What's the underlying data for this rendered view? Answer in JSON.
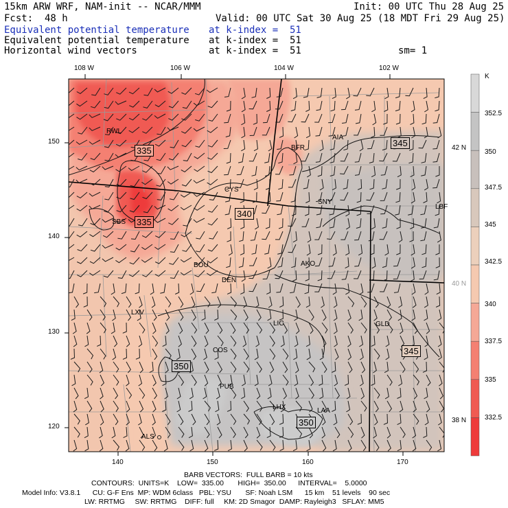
{
  "header": {
    "model": "15km ARW WRF, NAM-init -- NCAR/MMM",
    "init": "Init: 00 UTC Thu 28 Aug 25",
    "fcst_label": "Fcst:",
    "fcst_value": "48 h",
    "valid": "Valid: 00 UTC Sat 30 Aug 25 (18 MDT Fri 29 Aug 25)",
    "line1_left": "Equivalent potential temperature",
    "line1_right": "at k-index =  51",
    "line2_left": "Equivalent potential temperature",
    "line2_right": "at k-index =  51",
    "line3_left": "Horizontal wind vectors",
    "line3_right": "at k-index =  51",
    "smoothing": "sm= 1"
  },
  "top_axis": [
    "108 W",
    "106 W",
    "104 W",
    "102 W"
  ],
  "left_axis": [
    "150",
    "140",
    "130",
    "120"
  ],
  "bottom_axis": [
    "140",
    "150",
    "160",
    "170"
  ],
  "right_lat": [
    "42 N",
    "40 N",
    "38 N"
  ],
  "stations": [
    "RWL",
    "BFR",
    "AIA",
    "CYS",
    "SNY",
    "LBF",
    "SBS",
    "BOU",
    "AKO",
    "DEN",
    "LIC",
    "GLD",
    "LXV",
    "COS",
    "PUB",
    "LHX",
    "LAA",
    "ALS"
  ],
  "contour_labels": [
    "335",
    "335",
    "340",
    "345",
    "345",
    "350",
    "350"
  ],
  "colorbar": {
    "unit": "K",
    "ticks": [
      "352.5",
      "350",
      "347.5",
      "345",
      "342.5",
      "340",
      "337.5",
      "335",
      "332.5"
    ],
    "colors": [
      "#d8d8d8",
      "#c4c4c4",
      "#c8c0bc",
      "#d8c8bc",
      "#ecd0bc",
      "#f5c9b0",
      "#f5a896",
      "#f48072",
      "#f05a52",
      "#ee3b3b"
    ]
  },
  "footer": {
    "barbs": "BARB VECTORS:  FULL BARB = 10 kts",
    "contours": "CONTOURS:  UNITS=K    LOW=  335.00       HIGH=  350.00      INTERVAL=    5.0000",
    "model_info": "Model Info: V3.8.1      CU: G-F Ens  MP: WDM 6class   PBL: YSU       SF: Noah LSM      15 km    51 levels    90 sec",
    "physics": "LW: RRTMG     SW: RRTMG    DIFF: full     KM: 2D Smagor  DAMP: Rayleigh3   SFLAY: MM5"
  }
}
